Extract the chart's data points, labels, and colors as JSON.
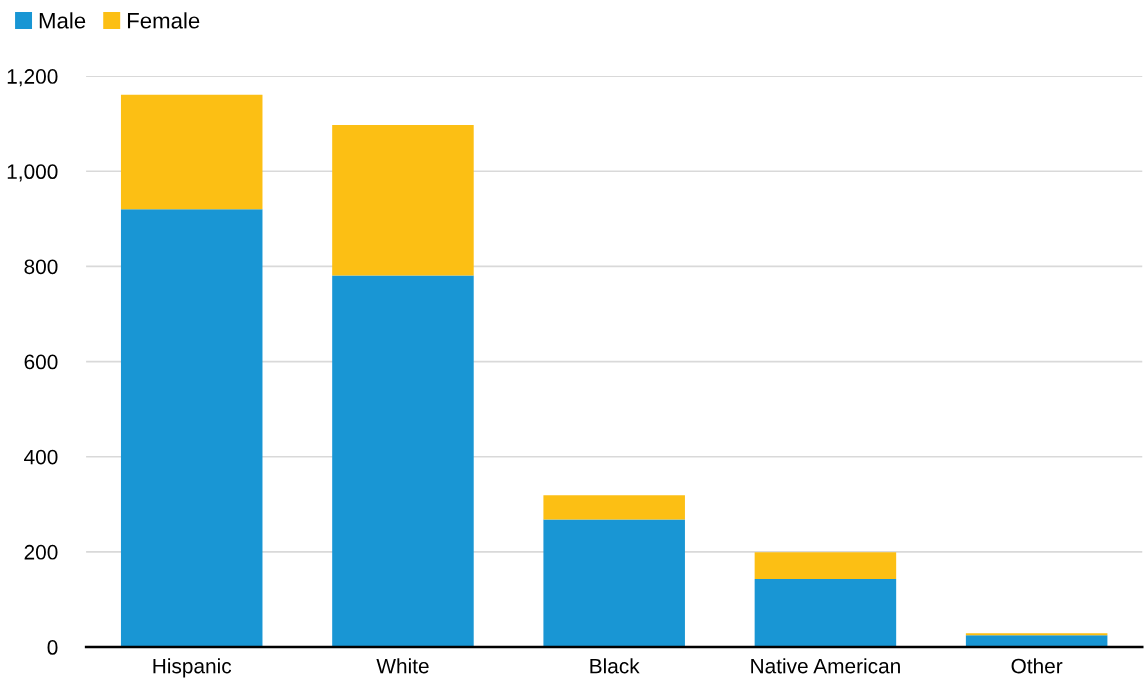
{
  "chart_data": {
    "type": "bar",
    "stacked": true,
    "categories": [
      "Hispanic",
      "White",
      "Black",
      "Native American",
      "Other"
    ],
    "series": [
      {
        "name": "Male",
        "color": "#1996d4",
        "values": [
          920,
          781,
          268,
          143,
          25
        ]
      },
      {
        "name": "Female",
        "color": "#fcbf14",
        "values": [
          241,
          316,
          51,
          56,
          4
        ]
      }
    ],
    "ylim": [
      0,
      1200
    ],
    "yticks": [
      0,
      {
        "value": 200,
        "label": "200"
      },
      {
        "value": 400,
        "label": "400"
      },
      {
        "value": 600,
        "label": "600"
      },
      {
        "value": 800,
        "label": "800"
      },
      {
        "value": 1000,
        "label": "1,000"
      },
      {
        "value": 1200,
        "label": "1,200"
      }
    ],
    "grid": "y",
    "legend": "top left"
  }
}
